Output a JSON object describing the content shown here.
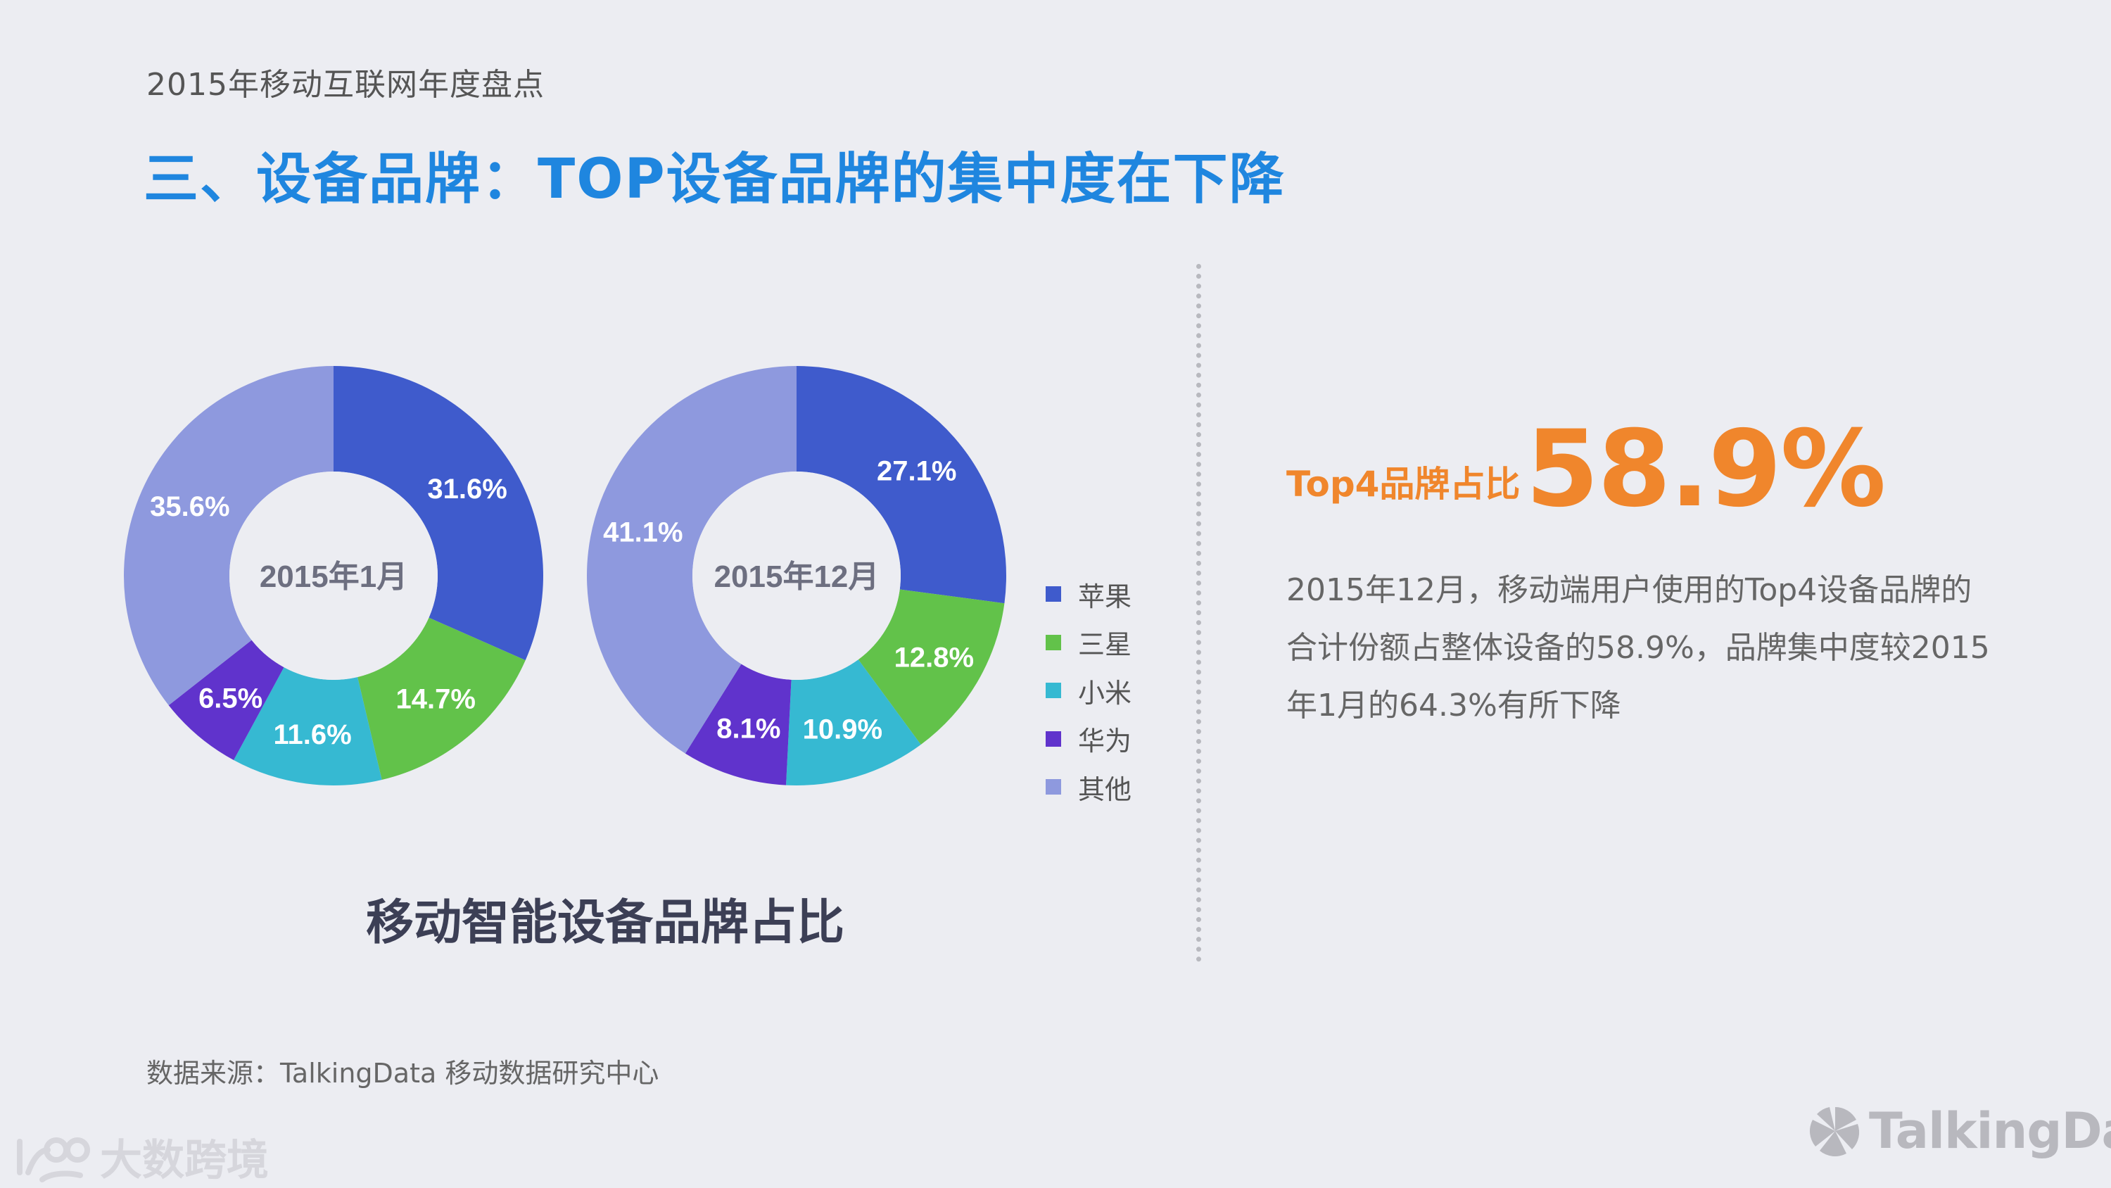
{
  "header": {
    "subtitle": "2015年移动互联网年度盘点",
    "title": "三、设备品牌：TOP设备品牌的集中度在下降"
  },
  "chart_data": {
    "type": "pie",
    "title": "移动智能设备品牌占比",
    "legend": [
      "苹果",
      "三星",
      "小米",
      "华为",
      "其他"
    ],
    "colors": [
      "#3f5bcc",
      "#62c24a",
      "#36b9d2",
      "#6033cc",
      "#8e99de"
    ],
    "charts": [
      {
        "center_label": "2015年1月",
        "values": [
          31.6,
          14.7,
          11.6,
          6.5,
          35.6
        ],
        "labels": [
          "31.6%",
          "14.7%",
          "11.6%",
          "6.5%",
          "35.6%"
        ]
      },
      {
        "center_label": "2015年12月",
        "values": [
          27.1,
          12.8,
          10.9,
          8.1,
          41.1
        ],
        "labels": [
          "27.1%",
          "12.8%",
          "10.9%",
          "8.1%",
          "41.1%"
        ]
      }
    ]
  },
  "kpi": {
    "label": "Top4品牌占比",
    "value": "58.9%"
  },
  "description": "2015年12月，移动端用户使用的Top4设备品牌的合计份额占整体设备的58.9%，品牌集中度较2015年1月的64.3%有所下降",
  "source": "数据来源：TalkingData 移动数据研究中心",
  "watermarks": {
    "left": "大数跨境",
    "right": "TalkingData"
  }
}
